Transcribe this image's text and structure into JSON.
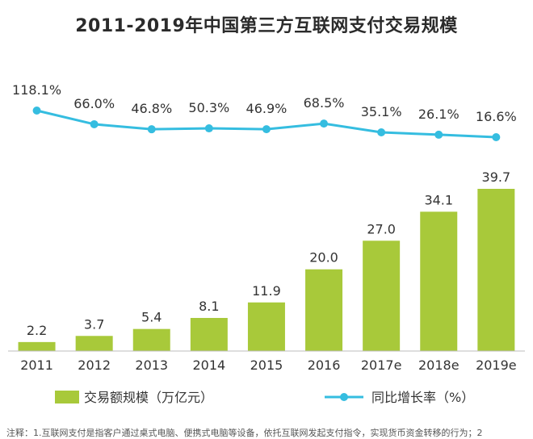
{
  "chart_data": {
    "type": "bar",
    "title": "2011-2019年中国第三方互联网支付交易规模",
    "categories": [
      "2011",
      "2012",
      "2013",
      "2014",
      "2015",
      "2016",
      "2017e",
      "2018e",
      "2019e"
    ],
    "series": [
      {
        "name": "交易额规模（万亿元）",
        "type": "bar",
        "color": "#a8c93a",
        "values": [
          2.2,
          3.7,
          5.4,
          8.1,
          11.9,
          20.0,
          27.0,
          34.1,
          39.7
        ],
        "labels": [
          "2.2",
          "3.7",
          "5.4",
          "8.1",
          "11.9",
          "20.0",
          "27.0",
          "34.1",
          "39.7"
        ]
      },
      {
        "name": "同比增长率（%）",
        "type": "line",
        "color": "#35bde0",
        "values": [
          118.1,
          66.0,
          46.8,
          50.3,
          46.9,
          68.5,
          35.1,
          26.1,
          16.6
        ],
        "labels": [
          "118.1%",
          "66.0%",
          "46.8%",
          "50.3%",
          "46.9%",
          "68.5%",
          "35.1%",
          "26.1%",
          "16.6%"
        ]
      }
    ],
    "legend": {
      "position": "bottom"
    },
    "grid": false,
    "note": "注释：1.互联网支付是指客户通过桌式电脑、便携式电脑等设备，依托互联网发起支付指令，实现货币资金转移的行为；2"
  }
}
